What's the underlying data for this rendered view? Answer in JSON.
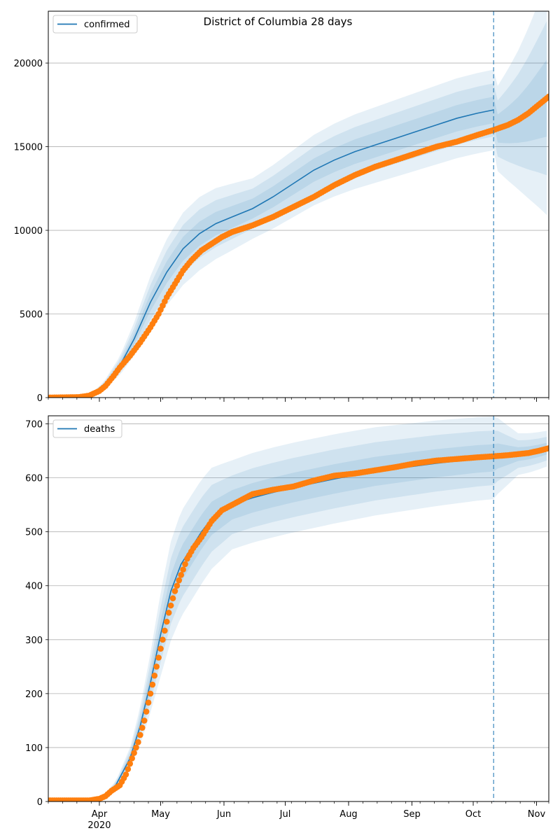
{
  "figure_title": "District of Columbia 28 days",
  "colors": {
    "model_line": "#1f77b4",
    "observed_points": "#ff7f0e",
    "band": "#1f77b4",
    "grid": "#b0b0b0",
    "forecast_marker": "#1f77b4"
  },
  "x_ticks": [
    "Apr",
    "May",
    "Jun",
    "Jul",
    "Aug",
    "Sep",
    "Oct",
    "Nov"
  ],
  "x_year_label": "2020",
  "chart_data": [
    {
      "type": "line",
      "name": "confirmed-panel",
      "legend": "confirmed",
      "legend_position": "top-left",
      "x_unit": "days since 2020-03-07",
      "xlim": [
        0,
        245
      ],
      "ylim": [
        0,
        23100
      ],
      "yticks": [
        0,
        5000,
        10000,
        15000,
        20000
      ],
      "ytick_labels": [
        "0",
        "5000",
        "10000",
        "15000",
        "20000"
      ],
      "forecast_start_day": 218,
      "grid": "horizontal",
      "model_line": [
        [
          0,
          0
        ],
        [
          10,
          20
        ],
        [
          20,
          130
        ],
        [
          27,
          700
        ],
        [
          35,
          1900
        ],
        [
          42,
          3500
        ],
        [
          50,
          5700
        ],
        [
          58,
          7500
        ],
        [
          66,
          8900
        ],
        [
          74,
          9800
        ],
        [
          82,
          10400
        ],
        [
          90,
          10800
        ],
        [
          100,
          11300
        ],
        [
          110,
          12000
        ],
        [
          120,
          12800
        ],
        [
          130,
          13600
        ],
        [
          140,
          14200
        ],
        [
          150,
          14700
        ],
        [
          160,
          15100
        ],
        [
          170,
          15500
        ],
        [
          180,
          15900
        ],
        [
          190,
          16300
        ],
        [
          200,
          16700
        ],
        [
          210,
          17000
        ],
        [
          218,
          17200
        ]
      ],
      "band_half_widths": [
        [
          0,
          0
        ],
        [
          25,
          0.3
        ],
        [
          55,
          0.27
        ],
        [
          100,
          0.16
        ],
        [
          218,
          0.14
        ],
        [
          230,
          0.25
        ],
        [
          245,
          0.4
        ]
      ],
      "band_levels": [
        1.0,
        0.66,
        0.33
      ],
      "observed_points": [
        [
          0,
          0
        ],
        [
          15,
          30
        ],
        [
          20,
          120
        ],
        [
          25,
          400
        ],
        [
          28,
          700
        ],
        [
          32,
          1300
        ],
        [
          35,
          1800
        ],
        [
          40,
          2500
        ],
        [
          45,
          3300
        ],
        [
          50,
          4200
        ],
        [
          54,
          5000
        ],
        [
          58,
          6000
        ],
        [
          62,
          6800
        ],
        [
          66,
          7600
        ],
        [
          70,
          8200
        ],
        [
          75,
          8800
        ],
        [
          80,
          9200
        ],
        [
          85,
          9600
        ],
        [
          90,
          9900
        ],
        [
          100,
          10300
        ],
        [
          110,
          10800
        ],
        [
          120,
          11400
        ],
        [
          130,
          12000
        ],
        [
          140,
          12700
        ],
        [
          150,
          13300
        ],
        [
          160,
          13800
        ],
        [
          170,
          14200
        ],
        [
          180,
          14600
        ],
        [
          190,
          15000
        ],
        [
          200,
          15300
        ],
        [
          210,
          15700
        ],
        [
          218,
          16000
        ],
        [
          225,
          16300
        ],
        [
          230,
          16600
        ],
        [
          235,
          17000
        ],
        [
          240,
          17500
        ],
        [
          245,
          18000
        ]
      ]
    },
    {
      "type": "line",
      "name": "deaths-panel",
      "legend": "deaths",
      "legend_position": "top-left",
      "x_unit": "days since 2020-03-07",
      "xlim": [
        0,
        245
      ],
      "ylim": [
        0,
        715
      ],
      "yticks": [
        0,
        100,
        200,
        300,
        400,
        500,
        600,
        700
      ],
      "ytick_labels": [
        "0",
        "100",
        "200",
        "300",
        "400",
        "500",
        "600",
        "700"
      ],
      "forecast_start_day": 218,
      "grid": "horizontal",
      "model_line": [
        [
          0,
          0
        ],
        [
          20,
          2
        ],
        [
          27,
          10
        ],
        [
          33,
          30
        ],
        [
          40,
          80
        ],
        [
          45,
          140
        ],
        [
          50,
          220
        ],
        [
          55,
          310
        ],
        [
          60,
          390
        ],
        [
          65,
          440
        ],
        [
          70,
          470
        ],
        [
          75,
          500
        ],
        [
          80,
          525
        ],
        [
          90,
          550
        ],
        [
          100,
          563
        ],
        [
          110,
          573
        ],
        [
          120,
          582
        ],
        [
          130,
          590
        ],
        [
          140,
          598
        ],
        [
          150,
          605
        ],
        [
          160,
          612
        ],
        [
          170,
          617
        ],
        [
          180,
          622
        ],
        [
          190,
          627
        ],
        [
          200,
          631
        ],
        [
          210,
          635
        ],
        [
          218,
          637
        ]
      ],
      "band_half_widths": [
        [
          0,
          0
        ],
        [
          25,
          0.25
        ],
        [
          55,
          0.25
        ],
        [
          90,
          0.15
        ],
        [
          218,
          0.12
        ],
        [
          230,
          0.06
        ],
        [
          245,
          0.05
        ]
      ],
      "band_levels": [
        1.0,
        0.66,
        0.33
      ],
      "observed_points": [
        [
          0,
          2
        ],
        [
          20,
          2
        ],
        [
          25,
          5
        ],
        [
          28,
          10
        ],
        [
          31,
          20
        ],
        [
          35,
          30
        ],
        [
          38,
          50
        ],
        [
          41,
          80
        ],
        [
          44,
          110
        ],
        [
          47,
          150
        ],
        [
          50,
          200
        ],
        [
          53,
          250
        ],
        [
          56,
          300
        ],
        [
          59,
          350
        ],
        [
          62,
          390
        ],
        [
          65,
          420
        ],
        [
          68,
          450
        ],
        [
          71,
          470
        ],
        [
          75,
          490
        ],
        [
          80,
          520
        ],
        [
          85,
          540
        ],
        [
          90,
          550
        ],
        [
          95,
          560
        ],
        [
          100,
          570
        ],
        [
          110,
          578
        ],
        [
          120,
          584
        ],
        [
          130,
          595
        ],
        [
          140,
          604
        ],
        [
          150,
          608
        ],
        [
          160,
          614
        ],
        [
          170,
          620
        ],
        [
          180,
          627
        ],
        [
          190,
          632
        ],
        [
          200,
          635
        ],
        [
          210,
          638
        ],
        [
          218,
          640
        ],
        [
          225,
          642
        ],
        [
          230,
          644
        ],
        [
          235,
          646
        ],
        [
          240,
          650
        ],
        [
          245,
          655
        ]
      ]
    }
  ]
}
